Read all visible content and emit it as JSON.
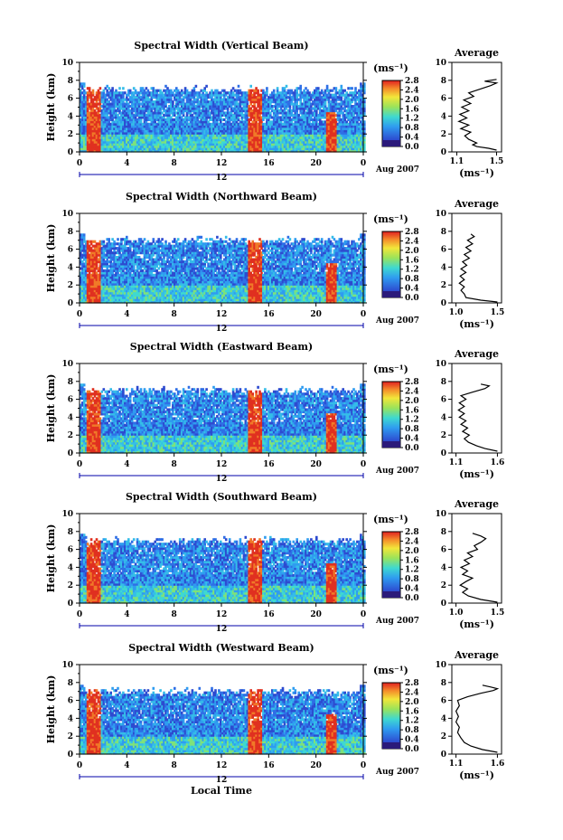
{
  "footer": {
    "xlabel": "Local Time"
  },
  "common": {
    "ylabel": "Height (km)",
    "unit_label": "(ms⁻¹)",
    "avg_unit": "(ms⁻¹)",
    "avg_title": "Average",
    "date_mid": "12",
    "date_right": "Aug 2007",
    "colorbar_ticks": [
      "2.8",
      "2.4",
      "2.0",
      "1.6",
      "1.2",
      "0.8",
      "0.4",
      "0.0"
    ]
  },
  "chart_data": [
    {
      "type": "heatmap",
      "title": "Spectral Width (Vertical Beam)",
      "xlabel": "Local Time",
      "ylabel": "Height (km)",
      "x_ticks": [
        "0",
        "4",
        "8",
        "12",
        "16",
        "20",
        "0"
      ],
      "xlim": [
        0,
        24
      ],
      "y_ticks": [
        "0",
        "2",
        "4",
        "6",
        "8",
        "10"
      ],
      "ylim": [
        0,
        10
      ],
      "colorbar": {
        "label": "(ms⁻¹)",
        "range": [
          0.0,
          2.8
        ],
        "ticks": [
          "2.8",
          "2.4",
          "2.0",
          "1.6",
          "1.2",
          "0.8",
          "0.4",
          "0.0"
        ]
      },
      "high_width_bands_hours": [
        [
          0.6,
          1.7
        ],
        [
          14.2,
          15.4
        ],
        [
          20.8,
          21.7
        ]
      ],
      "average": {
        "title": "Average",
        "xlabel": "(ms⁻¹)",
        "x_ticks": [
          "1.1",
          "1.5"
        ],
        "xlim": [
          1.05,
          1.55
        ],
        "y_ticks": [
          "0",
          "2",
          "4",
          "6",
          "8",
          "10"
        ],
        "profile": [
          [
            1.5,
            0.2
          ],
          [
            1.42,
            0.4
          ],
          [
            1.3,
            0.6
          ],
          [
            1.26,
            0.8
          ],
          [
            1.3,
            1.0
          ],
          [
            1.22,
            1.4
          ],
          [
            1.18,
            1.8
          ],
          [
            1.24,
            2.2
          ],
          [
            1.14,
            2.6
          ],
          [
            1.22,
            3.0
          ],
          [
            1.12,
            3.4
          ],
          [
            1.2,
            3.8
          ],
          [
            1.13,
            4.2
          ],
          [
            1.22,
            4.6
          ],
          [
            1.15,
            5.0
          ],
          [
            1.24,
            5.4
          ],
          [
            1.17,
            5.8
          ],
          [
            1.27,
            6.2
          ],
          [
            1.22,
            6.6
          ],
          [
            1.33,
            7.0
          ],
          [
            1.44,
            7.4
          ],
          [
            1.5,
            7.7
          ],
          [
            1.38,
            7.9
          ],
          [
            1.5,
            8.1
          ]
        ]
      }
    },
    {
      "type": "heatmap",
      "title": "Spectral Width (Northward Beam)",
      "xlabel": "Local Time",
      "ylabel": "Height (km)",
      "x_ticks": [
        "0",
        "4",
        "8",
        "12",
        "16",
        "20",
        "0"
      ],
      "xlim": [
        0,
        24
      ],
      "y_ticks": [
        "0",
        "2",
        "4",
        "6",
        "8",
        "10"
      ],
      "ylim": [
        0,
        10
      ],
      "colorbar": {
        "label": "(ms⁻¹)",
        "range": [
          0.0,
          2.8
        ],
        "ticks": [
          "2.8",
          "2.4",
          "2.0",
          "1.6",
          "1.2",
          "0.8",
          "0.4",
          "0.0"
        ]
      },
      "high_width_bands_hours": [
        [
          0.6,
          1.7
        ],
        [
          14.2,
          15.4
        ],
        [
          20.8,
          21.7
        ]
      ],
      "average": {
        "title": "Average",
        "xlabel": "(ms⁻¹)",
        "x_ticks": [
          "1.0",
          "1.5"
        ],
        "xlim": [
          0.95,
          1.55
        ],
        "y_ticks": [
          "0",
          "2",
          "4",
          "6",
          "8",
          "10"
        ],
        "profile": [
          [
            1.5,
            0.1
          ],
          [
            1.3,
            0.3
          ],
          [
            1.12,
            0.6
          ],
          [
            1.1,
            1.0
          ],
          [
            1.06,
            1.4
          ],
          [
            1.1,
            1.8
          ],
          [
            1.04,
            2.2
          ],
          [
            1.1,
            2.6
          ],
          [
            1.05,
            3.0
          ],
          [
            1.12,
            3.4
          ],
          [
            1.06,
            3.8
          ],
          [
            1.13,
            4.2
          ],
          [
            1.08,
            4.6
          ],
          [
            1.16,
            5.0
          ],
          [
            1.1,
            5.4
          ],
          [
            1.18,
            5.8
          ],
          [
            1.12,
            6.2
          ],
          [
            1.2,
            6.6
          ],
          [
            1.14,
            7.0
          ],
          [
            1.22,
            7.4
          ],
          [
            1.18,
            7.7
          ]
        ]
      }
    },
    {
      "type": "heatmap",
      "title": "Spectral Width (Eastward Beam)",
      "xlabel": "Local Time",
      "ylabel": "Height (km)",
      "x_ticks": [
        "0",
        "4",
        "8",
        "12",
        "16",
        "20",
        "0"
      ],
      "xlim": [
        0,
        24
      ],
      "y_ticks": [
        "0",
        "2",
        "4",
        "6",
        "8",
        "10"
      ],
      "ylim": [
        0,
        10
      ],
      "colorbar": {
        "label": "(ms⁻¹)",
        "range": [
          0.0,
          2.8
        ],
        "ticks": [
          "2.8",
          "2.4",
          "2.0",
          "1.6",
          "1.2",
          "0.8",
          "0.4",
          "0.0"
        ]
      },
      "high_width_bands_hours": [
        [
          0.6,
          1.7
        ],
        [
          14.2,
          15.4
        ],
        [
          20.8,
          21.7
        ]
      ],
      "average": {
        "title": "Average",
        "xlabel": "(ms⁻¹)",
        "x_ticks": [
          "1.1",
          "1.6"
        ],
        "xlim": [
          1.05,
          1.65
        ],
        "y_ticks": [
          "0",
          "2",
          "4",
          "6",
          "8",
          "10"
        ],
        "profile": [
          [
            1.6,
            0.2
          ],
          [
            1.45,
            0.5
          ],
          [
            1.35,
            0.8
          ],
          [
            1.25,
            1.2
          ],
          [
            1.2,
            1.6
          ],
          [
            1.26,
            2.0
          ],
          [
            1.18,
            2.4
          ],
          [
            1.24,
            2.8
          ],
          [
            1.16,
            3.2
          ],
          [
            1.22,
            3.6
          ],
          [
            1.14,
            4.0
          ],
          [
            1.2,
            4.4
          ],
          [
            1.13,
            4.8
          ],
          [
            1.2,
            5.2
          ],
          [
            1.14,
            5.6
          ],
          [
            1.22,
            6.0
          ],
          [
            1.16,
            6.4
          ],
          [
            1.3,
            6.8
          ],
          [
            1.45,
            7.2
          ],
          [
            1.5,
            7.5
          ],
          [
            1.4,
            7.7
          ]
        ]
      }
    },
    {
      "type": "heatmap",
      "title": "Spectral Width (Southward Beam)",
      "xlabel": "Local Time",
      "ylabel": "Height (km)",
      "x_ticks": [
        "0",
        "4",
        "8",
        "12",
        "16",
        "20",
        "0"
      ],
      "xlim": [
        0,
        24
      ],
      "y_ticks": [
        "0",
        "2",
        "4",
        "6",
        "8",
        "10"
      ],
      "ylim": [
        0,
        10
      ],
      "colorbar": {
        "label": "(ms⁻¹)",
        "range": [
          0.0,
          2.8
        ],
        "ticks": [
          "2.8",
          "2.4",
          "2.0",
          "1.6",
          "1.2",
          "0.8",
          "0.4",
          "0.0"
        ]
      },
      "high_width_bands_hours": [
        [
          0.6,
          1.7
        ],
        [
          14.2,
          15.4
        ],
        [
          20.8,
          21.7
        ]
      ],
      "average": {
        "title": "Average",
        "xlabel": "(ms⁻¹)",
        "x_ticks": [
          "1.0",
          "1.5"
        ],
        "xlim": [
          0.95,
          1.55
        ],
        "y_ticks": [
          "0",
          "2",
          "4",
          "6",
          "8",
          "10"
        ],
        "profile": [
          [
            1.5,
            0.1
          ],
          [
            1.3,
            0.4
          ],
          [
            1.15,
            0.8
          ],
          [
            1.08,
            1.2
          ],
          [
            1.14,
            1.6
          ],
          [
            1.05,
            2.0
          ],
          [
            1.12,
            2.4
          ],
          [
            1.2,
            2.8
          ],
          [
            1.08,
            3.2
          ],
          [
            1.14,
            3.6
          ],
          [
            1.06,
            4.0
          ],
          [
            1.16,
            4.4
          ],
          [
            1.1,
            4.8
          ],
          [
            1.2,
            5.2
          ],
          [
            1.14,
            5.6
          ],
          [
            1.26,
            6.0
          ],
          [
            1.22,
            6.4
          ],
          [
            1.3,
            6.8
          ],
          [
            1.36,
            7.2
          ],
          [
            1.3,
            7.5
          ],
          [
            1.2,
            7.8
          ]
        ]
      }
    },
    {
      "type": "heatmap",
      "title": "Spectral Width (Westward Beam)",
      "xlabel": "Local Time",
      "ylabel": "Height (km)",
      "x_ticks": [
        "0",
        "4",
        "8",
        "12",
        "16",
        "20",
        "0"
      ],
      "xlim": [
        0,
        24
      ],
      "y_ticks": [
        "0",
        "2",
        "4",
        "6",
        "8",
        "10"
      ],
      "ylim": [
        0,
        10
      ],
      "colorbar": {
        "label": "(ms⁻¹)",
        "range": [
          0.0,
          2.8
        ],
        "ticks": [
          "2.8",
          "2.4",
          "2.0",
          "1.6",
          "1.2",
          "0.8",
          "0.4",
          "0.0"
        ]
      },
      "high_width_bands_hours": [
        [
          0.6,
          1.7
        ],
        [
          14.2,
          15.4
        ],
        [
          20.8,
          21.7
        ]
      ],
      "average": {
        "title": "Average",
        "xlabel": "(ms⁻¹)",
        "x_ticks": [
          "1.1",
          "1.6"
        ],
        "xlim": [
          1.05,
          1.65
        ],
        "y_ticks": [
          "0",
          "2",
          "4",
          "6",
          "8",
          "10"
        ],
        "profile": [
          [
            1.6,
            0.2
          ],
          [
            1.42,
            0.5
          ],
          [
            1.28,
            0.9
          ],
          [
            1.2,
            1.3
          ],
          [
            1.16,
            1.8
          ],
          [
            1.12,
            2.4
          ],
          [
            1.14,
            3.0
          ],
          [
            1.1,
            3.6
          ],
          [
            1.13,
            4.2
          ],
          [
            1.1,
            4.8
          ],
          [
            1.14,
            5.4
          ],
          [
            1.12,
            6.0
          ],
          [
            1.24,
            6.4
          ],
          [
            1.4,
            6.8
          ],
          [
            1.55,
            7.1
          ],
          [
            1.6,
            7.3
          ],
          [
            1.52,
            7.5
          ],
          [
            1.42,
            7.7
          ]
        ]
      }
    }
  ]
}
